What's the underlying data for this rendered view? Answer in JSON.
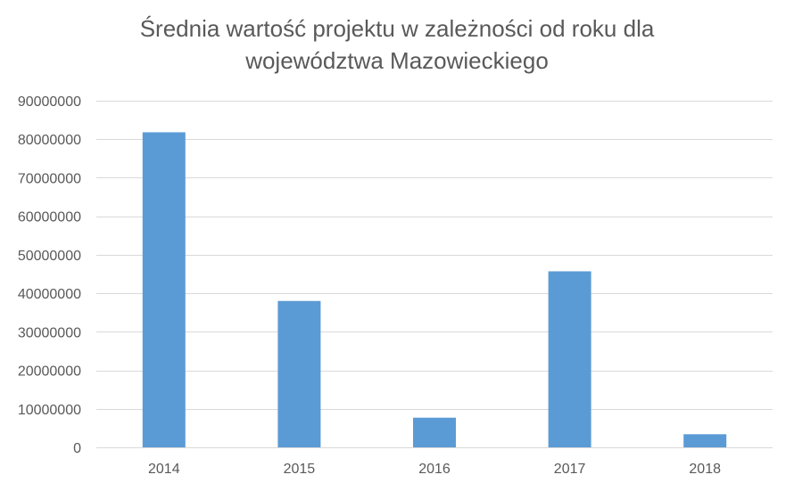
{
  "chart_data": {
    "type": "bar",
    "title_lines": [
      "Średnia wartość projektu w zależności od roku dla",
      "województwa Mazowieckiego"
    ],
    "categories": [
      "2014",
      "2015",
      "2016",
      "2017",
      "2018"
    ],
    "values": [
      81800000,
      38000000,
      7700000,
      45700000,
      3400000
    ],
    "yticks": [
      0,
      10000000,
      20000000,
      30000000,
      40000000,
      50000000,
      60000000,
      70000000,
      80000000,
      90000000
    ],
    "ytick_labels": [
      "0",
      "10000000",
      "20000000",
      "30000000",
      "40000000",
      "50000000",
      "60000000",
      "70000000",
      "80000000",
      "90000000"
    ],
    "ylim": [
      0,
      90000000
    ],
    "xlabel": "",
    "ylabel": "",
    "grid": true,
    "legend": "none",
    "bar_color": "#5b9bd5",
    "grid_color": "#d9d9d9",
    "text_color": "#595959"
  }
}
